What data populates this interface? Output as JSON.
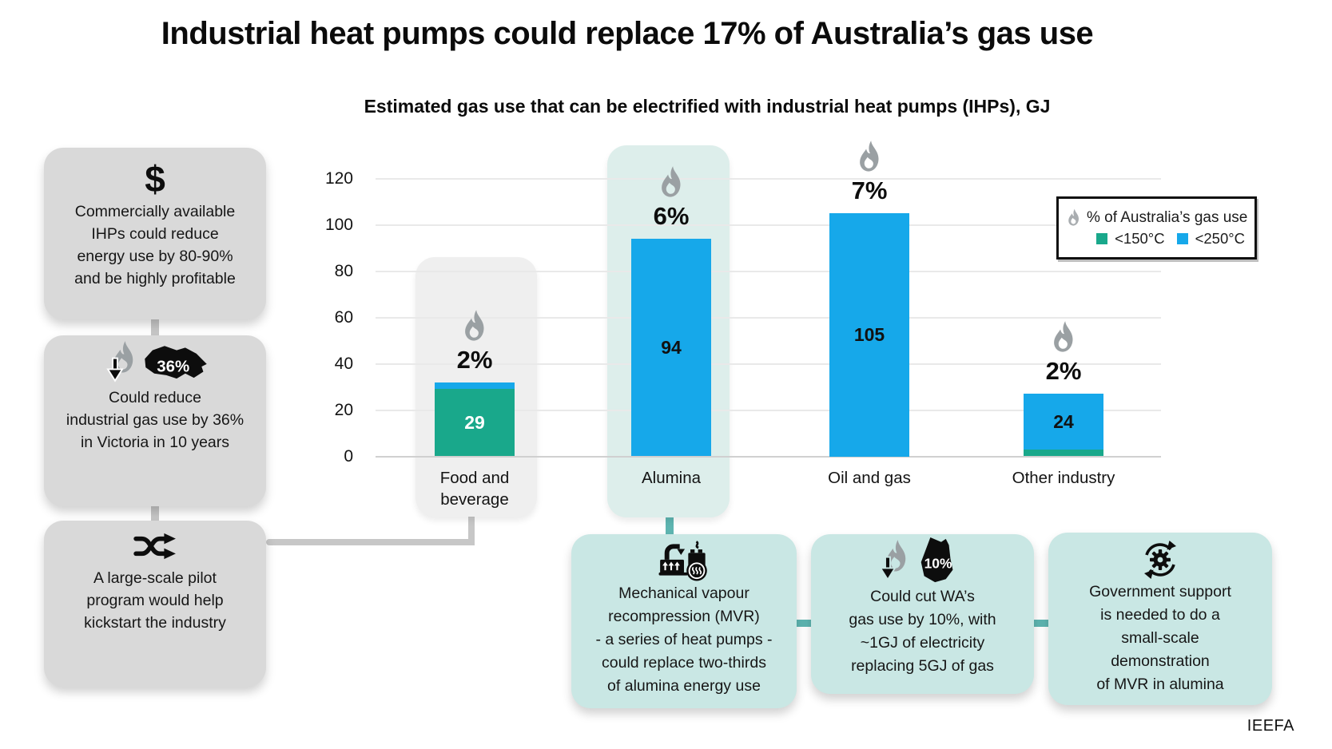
{
  "title": "Industrial heat pumps could replace 17% of Australia’s gas use",
  "chart": {
    "title": "Estimated gas use that can be electrified with industrial heat pumps (IHPs), GJ"
  },
  "legend": {
    "title": "% of Australia’s gas use",
    "items": [
      {
        "label": "<150°C",
        "color": "#19a88b"
      },
      {
        "label": "<250°C",
        "color": "#16a8ea"
      }
    ]
  },
  "left_flow": [
    {
      "icon": "dollar-icon",
      "icon_text": "$",
      "text": "Commercially available\nIHPs could reduce\nenergy use by 80-90%\nand be highly profitable"
    },
    {
      "icon": "flame-reduction-victoria-icon",
      "badge": "36%",
      "text": "Could reduce\nindustrial gas use by 36%\nin Victoria in 10 years"
    },
    {
      "icon": "shuffle-icon",
      "text": "A large-scale pilot\nprogram would help\nkickstart the industry"
    }
  ],
  "bottom_flow": [
    {
      "icon": "mvr-machine-icon",
      "text": "Mechanical vapour\nrecompression (MVR)\n- a series of heat pumps -\ncould replace two-thirds\nof alumina energy use"
    },
    {
      "icon": "flame-reduction-wa-icon",
      "badge": "10%",
      "text": "Could cut WA’s\ngas use by 10%, with\n~1GJ of electricity\nreplacing 5GJ of gas"
    },
    {
      "icon": "gear-cycle-icon",
      "text": "Government support\nis needed to do a\nsmall-scale\ndemonstration\nof MVR in alumina"
    }
  ],
  "source": "IEEFA",
  "colors": {
    "green": "#19a88b",
    "blue": "#16a8ea",
    "gray_box": "#d9d9d9",
    "teal_box": "#c9e7e4",
    "alumina_highlight": "#ddeeeb",
    "food_highlight": "#efefef",
    "teal_connector": "#5eb5b1",
    "gray_connector": "#c7c7c7",
    "flame_gray": "#9aa0a3"
  },
  "chart_data": {
    "type": "bar",
    "stacked": true,
    "title": "Estimated gas use that can be electrified with industrial heat pumps (IHPs), GJ",
    "unit": "GJ",
    "categories": [
      "Food and beverage",
      "Alumina",
      "Oil and gas",
      "Other industry"
    ],
    "series": [
      {
        "name": "<150°C",
        "color": "#19a88b",
        "values": [
          29,
          0,
          0,
          3
        ]
      },
      {
        "name": "<250°C",
        "color": "#16a8ea",
        "values": [
          3,
          94,
          105,
          24
        ]
      }
    ],
    "bar_value_labels": [
      {
        "text": "29",
        "color": "#ffffff",
        "segment": "s0"
      },
      {
        "text": "94",
        "color": "#111111",
        "segment": "full"
      },
      {
        "text": "105",
        "color": "#111111",
        "segment": "full"
      },
      {
        "text": "24",
        "color": "#111111",
        "segment": "s1"
      }
    ],
    "share_labels": [
      "2%",
      "6%",
      "7%",
      "2%"
    ],
    "share_label_meaning": "% of Australia’s gas use",
    "yticks": [
      0,
      20,
      40,
      60,
      80,
      100,
      120
    ],
    "ylim": [
      0,
      120
    ],
    "grid": true,
    "legend_position": "top-right",
    "highlighted_categories": [
      "Food and beverage",
      "Alumina"
    ]
  }
}
